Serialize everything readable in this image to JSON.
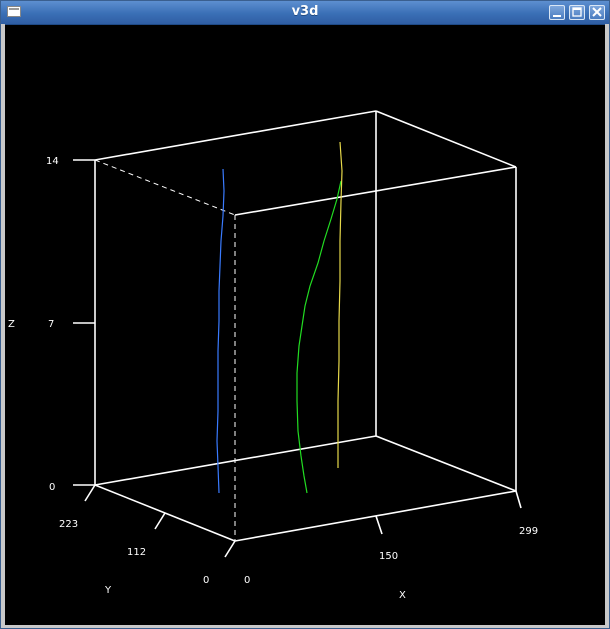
{
  "window": {
    "title": "v3d"
  },
  "colors": {
    "titlebar": "#3a6fb6",
    "background": "#000000",
    "axes": "#ffffff",
    "blue_trace": "#3a7bff",
    "green_trace": "#22dd22",
    "yellow_trace": "#e6d84a"
  },
  "icons": {
    "app": "window-icon",
    "minimize": "minimize-icon",
    "maximize": "maximize-icon",
    "close": "close-icon"
  },
  "axes": {
    "z": {
      "label": "Z",
      "ticks": [
        "0",
        "7",
        "14"
      ]
    },
    "y": {
      "label": "Y",
      "ticks": [
        "0",
        "112",
        "223"
      ]
    },
    "x": {
      "label": "X",
      "ticks": [
        "0",
        "150",
        "299"
      ]
    }
  }
}
